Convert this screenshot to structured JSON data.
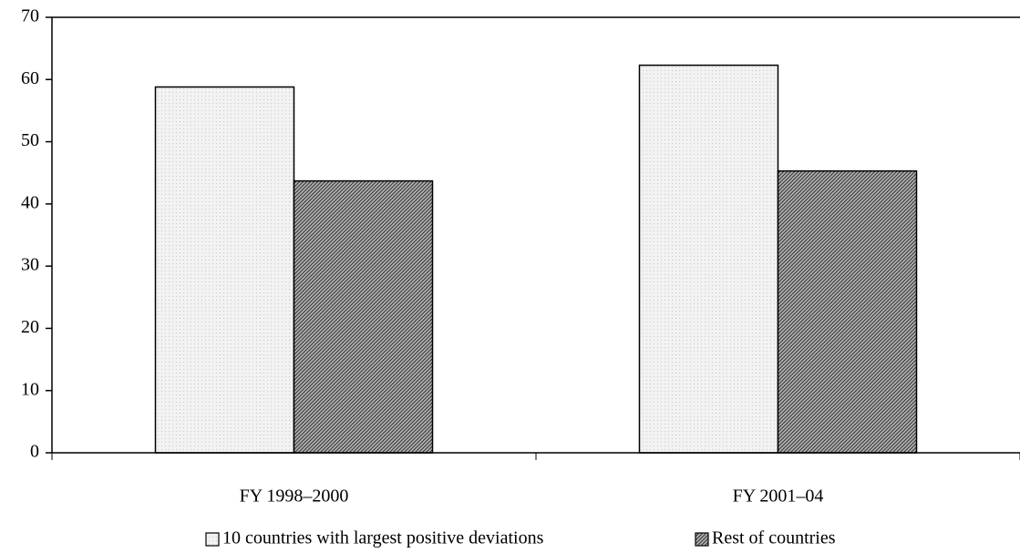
{
  "chart_data": {
    "type": "bar",
    "categories": [
      "FY 1998–2000",
      "FY 2001–04"
    ],
    "series": [
      {
        "name": "10 countries with largest positive deviations",
        "color": "#f2f2f2",
        "pattern": "dots",
        "values": [
          58.8,
          62.3
        ]
      },
      {
        "name": "Rest of countries",
        "color": "#b0b0b0",
        "pattern": "diagonal",
        "values": [
          43.7,
          45.3
        ]
      }
    ],
    "ylim": [
      0,
      70
    ],
    "yticks": [
      0,
      10,
      20,
      30,
      40,
      50,
      60,
      70
    ],
    "grid": false,
    "legend": "bottom"
  }
}
